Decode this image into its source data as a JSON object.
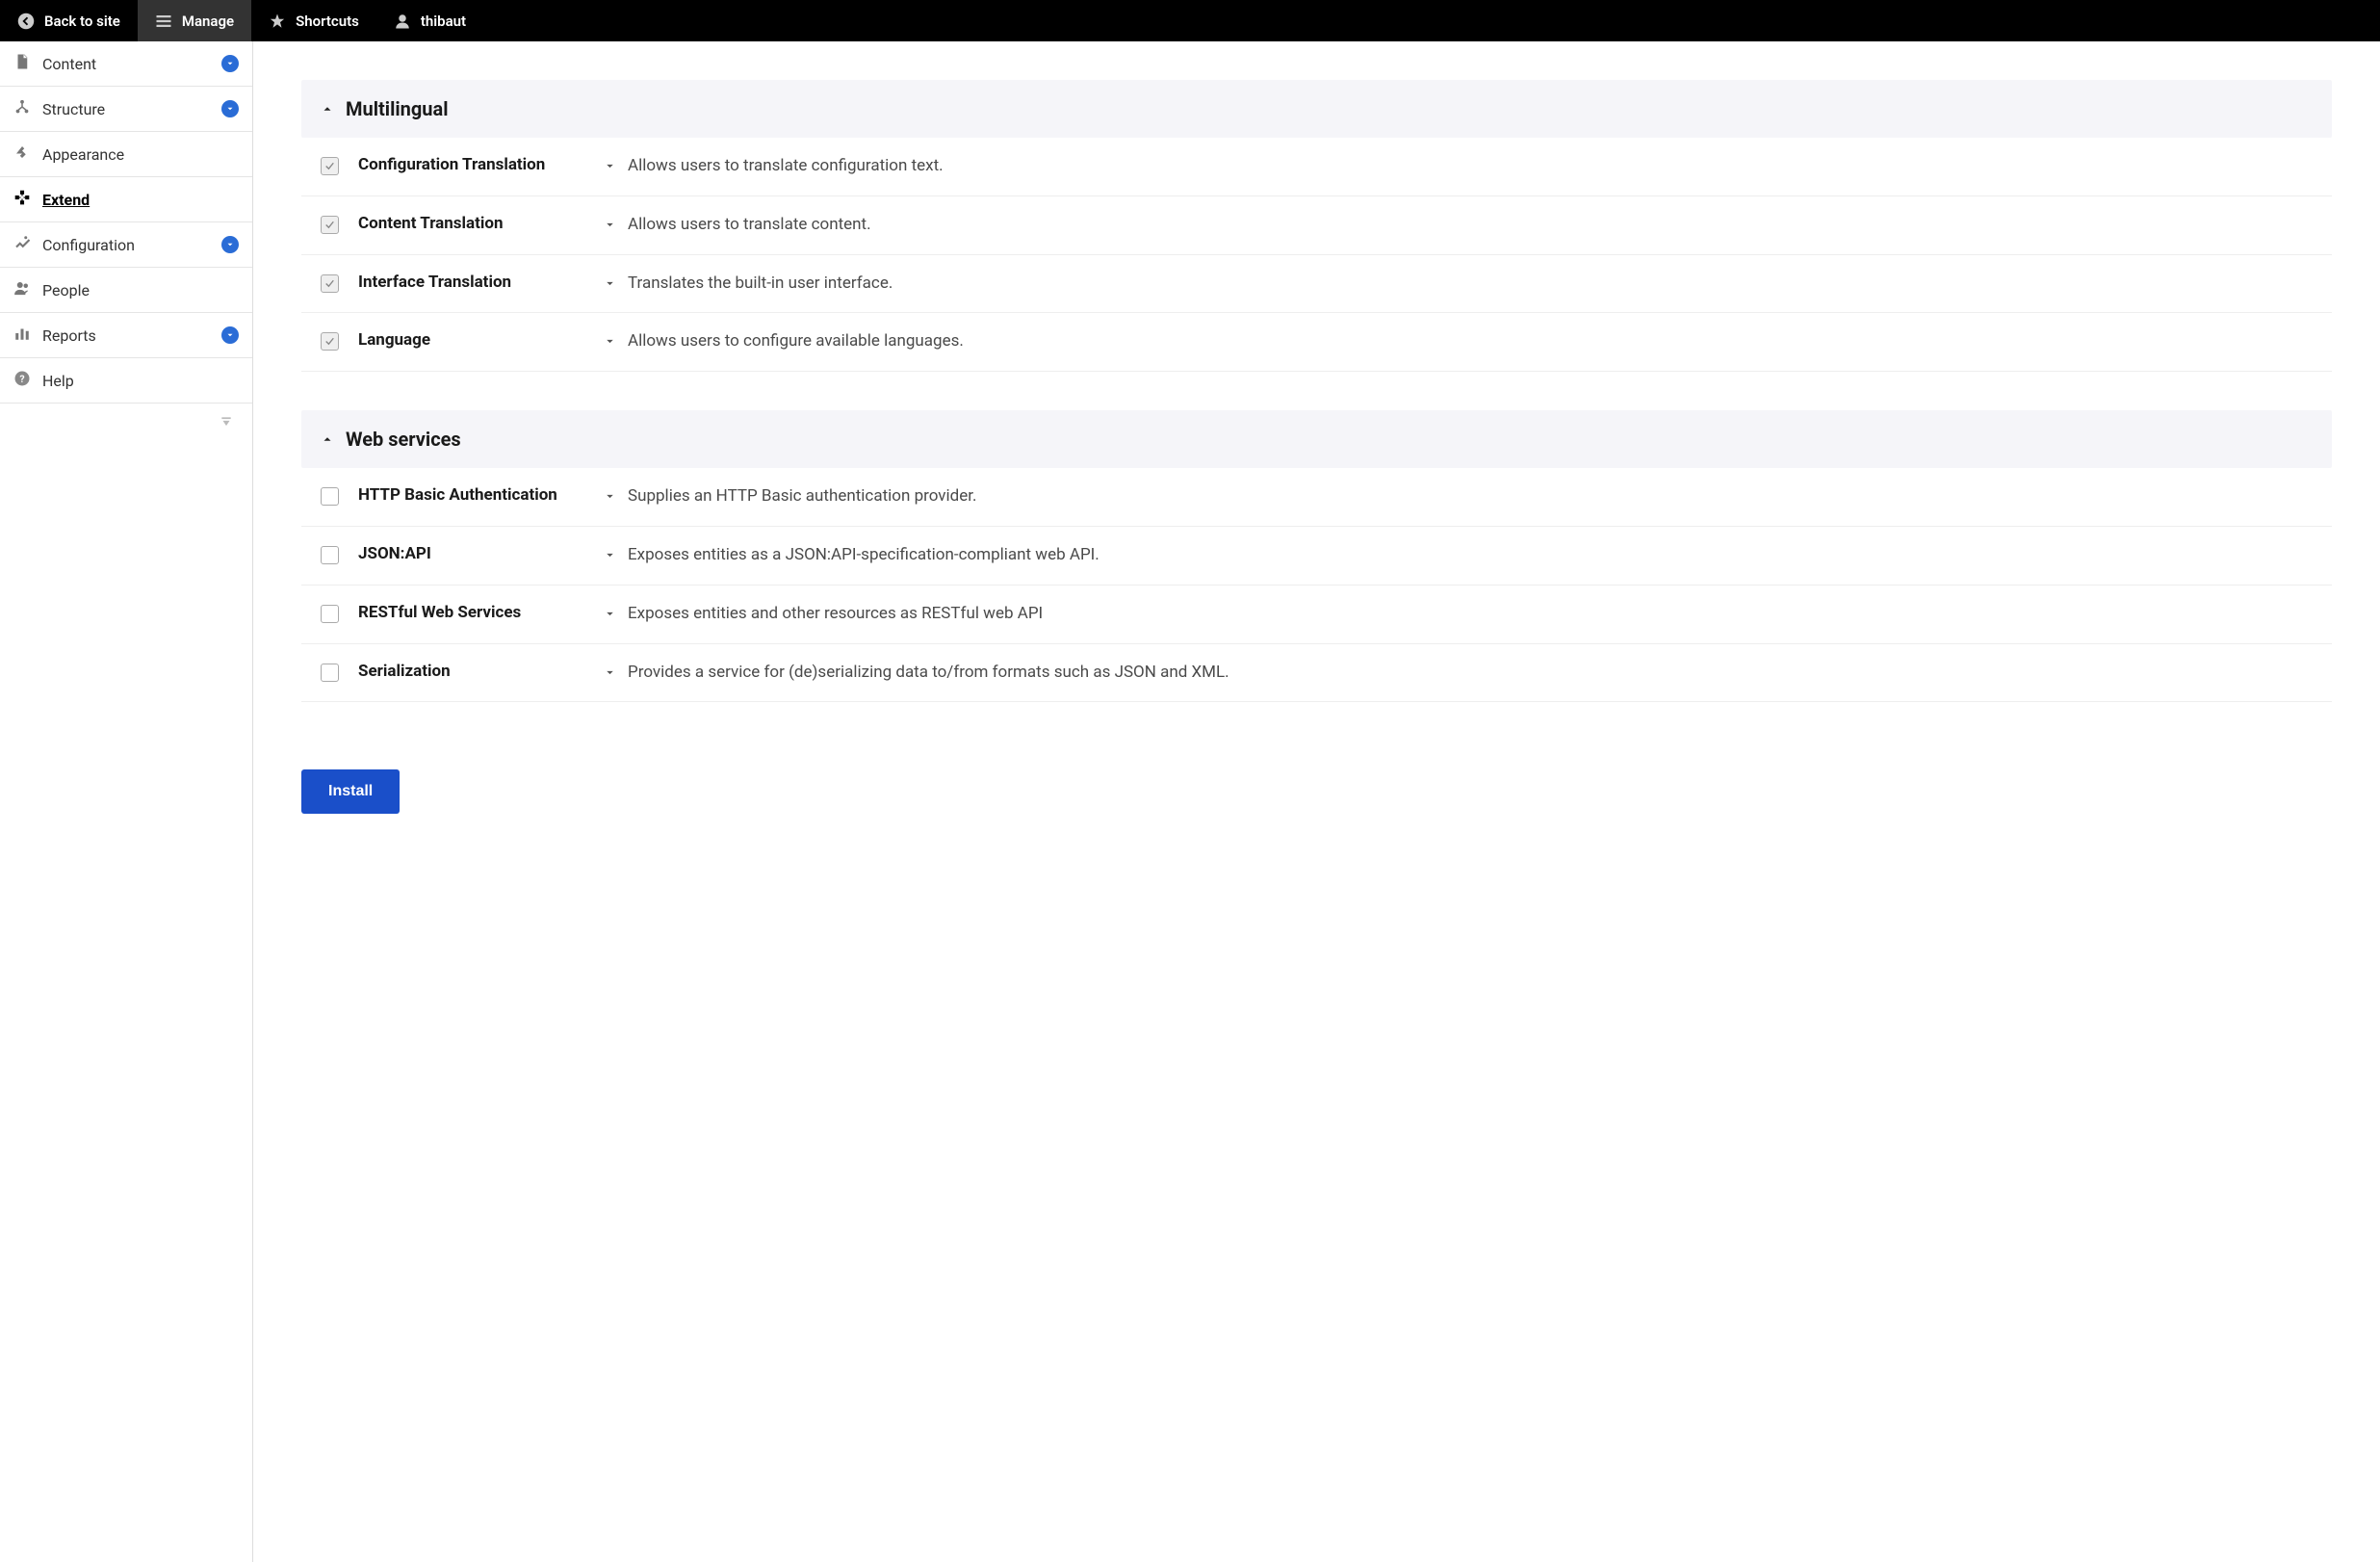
{
  "toolbar": {
    "back": "Back to site",
    "manage": "Manage",
    "shortcuts": "Shortcuts",
    "user": "thibaut"
  },
  "sidebar": {
    "items": [
      {
        "label": "Content",
        "expandable": true
      },
      {
        "label": "Structure",
        "expandable": true
      },
      {
        "label": "Appearance",
        "expandable": false
      },
      {
        "label": "Extend",
        "expandable": false,
        "active": true
      },
      {
        "label": "Configuration",
        "expandable": true
      },
      {
        "label": "People",
        "expandable": false
      },
      {
        "label": "Reports",
        "expandable": true
      },
      {
        "label": "Help",
        "expandable": false
      }
    ]
  },
  "sections": [
    {
      "title": "Multilingual",
      "modules": [
        {
          "name": "Configuration Translation",
          "desc": "Allows users to translate configuration text.",
          "checked": true
        },
        {
          "name": "Content Translation",
          "desc": "Allows users to translate content.",
          "checked": true
        },
        {
          "name": "Interface Translation",
          "desc": "Translates the built-in user interface.",
          "checked": true
        },
        {
          "name": "Language",
          "desc": "Allows users to configure available languages.",
          "checked": true
        }
      ]
    },
    {
      "title": "Web services",
      "modules": [
        {
          "name": "HTTP Basic Authentication",
          "desc": "Supplies an HTTP Basic authentication provider.",
          "checked": false
        },
        {
          "name": "JSON:API",
          "desc": "Exposes entities as a JSON:API-specification-compliant web API.",
          "checked": false
        },
        {
          "name": "RESTful Web Services",
          "desc": "Exposes entities and other resources as RESTful web API",
          "checked": false
        },
        {
          "name": "Serialization",
          "desc": "Provides a service for (de)serializing data to/from formats such as JSON and XML.",
          "checked": false
        }
      ]
    }
  ],
  "install_label": "Install",
  "colors": {
    "toolbar_bg": "#000000",
    "toolbar_active": "#333333",
    "sidebar_expand": "#2a6cd6",
    "section_bg": "#f5f5f9",
    "install_btn": "#1a4fc9",
    "border": "#eeeeee",
    "text_primary": "#1a1a1a",
    "text_secondary": "#4a4a4a"
  }
}
